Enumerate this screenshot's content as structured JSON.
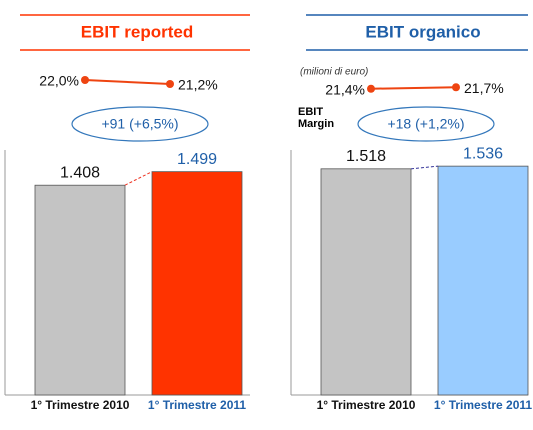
{
  "chart_data": [
    {
      "type": "bar",
      "title": "EBIT reported",
      "categories": [
        "1° Trimestre 2010",
        "1° Trimestre 2011"
      ],
      "values": [
        1408,
        1499
      ],
      "value_labels": [
        "1.408",
        "1.499"
      ],
      "colors": [
        "#c4c4c4",
        "#ff3300"
      ],
      "title_color": "#ff3300",
      "margin": {
        "values": [
          22.0,
          21.2
        ],
        "value_labels": [
          "22,0%",
          "21,2%"
        ],
        "color": "#ee4411"
      },
      "annotation": "+91 (+6,5%)"
    },
    {
      "type": "bar",
      "title": "EBIT organico",
      "subtitle": "(milioni di euro)",
      "categories": [
        "1° Trimestre 2010",
        "1° Trimestre 2011"
      ],
      "values": [
        1518,
        1536
      ],
      "value_labels": [
        "1.518",
        "1.536"
      ],
      "colors": [
        "#c4c4c4",
        "#99ccff"
      ],
      "title_color": "#1f5fa8",
      "margin": {
        "name": "EBIT Margin",
        "values": [
          21.4,
          21.7
        ],
        "value_labels": [
          "21,4%",
          "21,7%"
        ],
        "color": "#ee4411"
      },
      "annotation": "+18 (+1,2%)"
    }
  ]
}
